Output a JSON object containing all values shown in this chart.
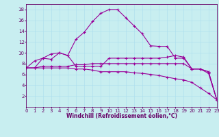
{
  "title": "",
  "xlabel": "Windchill (Refroidissement éolien,°C)",
  "bg_color": "#c8eef0",
  "line_color": "#990099",
  "grid_color": "#aaddee",
  "axis_color": "#660066",
  "xlim": [
    0,
    23
  ],
  "ylim": [
    0,
    19
  ],
  "xticks": [
    0,
    1,
    2,
    3,
    4,
    5,
    6,
    7,
    8,
    9,
    10,
    11,
    12,
    13,
    14,
    15,
    16,
    17,
    18,
    19,
    20,
    21,
    22,
    23
  ],
  "yticks": [
    2,
    4,
    6,
    8,
    10,
    12,
    14,
    16,
    18
  ],
  "line1_x": [
    0,
    1,
    2,
    3,
    4,
    5,
    6,
    7,
    8,
    9,
    10,
    11,
    12,
    13,
    14,
    15,
    16,
    17,
    18,
    19,
    20,
    21,
    22,
    23
  ],
  "line1_y": [
    7.2,
    8.5,
    9.0,
    9.8,
    10.0,
    9.5,
    12.5,
    13.8,
    15.8,
    17.3,
    18.0,
    18.0,
    16.5,
    15.0,
    13.5,
    11.3,
    11.2,
    11.2,
    9.0,
    9.0,
    7.0,
    7.0,
    6.2,
    1.3
  ],
  "line2_x": [
    0,
    1,
    2,
    3,
    4,
    5,
    6,
    7,
    8,
    9,
    10,
    11,
    12,
    13,
    14,
    15,
    16,
    17,
    18,
    19,
    20,
    21,
    22,
    23
  ],
  "line2_y": [
    7.2,
    7.2,
    7.5,
    7.5,
    7.5,
    7.5,
    7.8,
    7.8,
    8.0,
    8.0,
    8.0,
    8.0,
    8.0,
    8.0,
    8.0,
    8.0,
    8.0,
    8.0,
    8.0,
    8.0,
    7.0,
    7.0,
    6.5,
    1.3
  ],
  "line3_x": [
    0,
    1,
    2,
    3,
    4,
    5,
    6,
    7,
    8,
    9,
    10,
    11,
    12,
    13,
    14,
    15,
    16,
    17,
    18,
    19,
    20,
    21,
    22,
    23
  ],
  "line3_y": [
    7.2,
    7.2,
    7.2,
    7.2,
    7.2,
    7.2,
    7.0,
    7.0,
    6.8,
    6.5,
    6.5,
    6.5,
    6.5,
    6.3,
    6.2,
    6.0,
    5.8,
    5.5,
    5.2,
    5.0,
    4.5,
    3.5,
    2.5,
    1.3
  ],
  "line4_x": [
    0,
    1,
    2,
    3,
    4,
    5,
    6,
    7,
    8,
    9,
    10,
    11,
    12,
    13,
    14,
    15,
    16,
    17,
    18,
    19,
    20,
    21,
    22,
    23
  ],
  "line4_y": [
    7.2,
    7.2,
    9.0,
    8.8,
    10.0,
    9.5,
    7.5,
    7.5,
    7.5,
    7.5,
    9.0,
    9.0,
    9.0,
    9.0,
    9.0,
    9.0,
    9.0,
    9.2,
    9.5,
    9.2,
    7.0,
    7.0,
    6.5,
    1.3
  ],
  "marker": "+",
  "markersize": 3,
  "linewidth": 0.8,
  "tick_fontsize": 5,
  "xlabel_fontsize": 5.5,
  "figwidth": 3.2,
  "figheight": 2.0,
  "dpi": 100
}
